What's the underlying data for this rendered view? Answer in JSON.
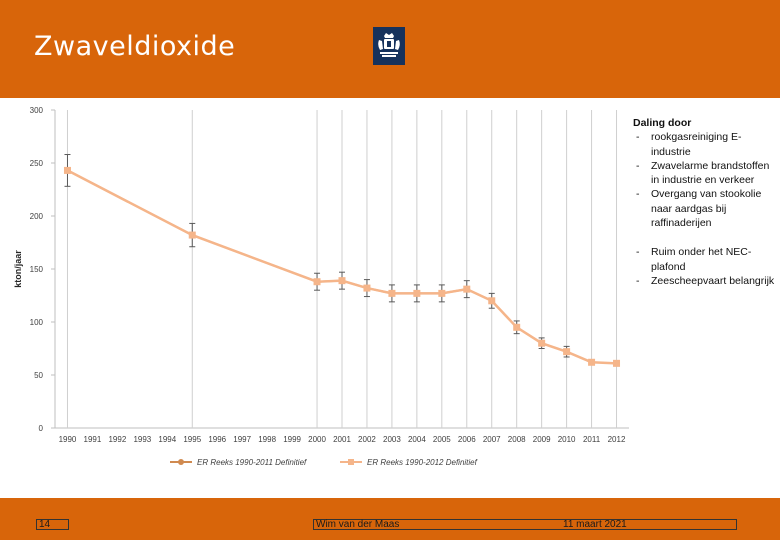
{
  "header": {
    "title": "Zwaveldioxide"
  },
  "notes": {
    "heading": "Daling door",
    "group1": [
      "rookgasreiniging E-industrie",
      "Zwavelarme brandstoffen in industrie en verkeer",
      "Overgang van stookolie naar aardgas bij raffinaderijen"
    ],
    "group2": [
      "Ruim onder het NEC-plafond",
      "Zeescheepvaart belangrijk"
    ]
  },
  "footer": {
    "page": "14",
    "author": "Wim van der Maas",
    "date": "11 maart 2021"
  },
  "colors": {
    "brand": "#d8650a",
    "series1": "#d08a50",
    "series2": "#f5b58a",
    "logo": "#16325c"
  },
  "icons": {
    "logo": "rijksoverheid-crest-icon"
  },
  "chart_data": {
    "type": "line",
    "ylabel": "kton/jaar",
    "ylim": [
      0,
      300
    ],
    "yticks": [
      "300",
      "250",
      "200",
      "150",
      "100",
      "50",
      "0"
    ],
    "categories": [
      "1990",
      "1991",
      "1992",
      "1993",
      "1994",
      "1995",
      "1996",
      "1997",
      "1998",
      "1999",
      "2000",
      "2001",
      "2002",
      "2003",
      "2004",
      "2005",
      "2006",
      "2007",
      "2008",
      "2009",
      "2010",
      "2011",
      "2012"
    ],
    "series": [
      {
        "name": "ER Reeks 1990-2011 Definitief",
        "x": [
          "1990",
          "1995",
          "2000",
          "2001",
          "2002",
          "2003",
          "2004",
          "2005",
          "2006",
          "2007",
          "2008",
          "2009",
          "2010",
          "2011"
        ],
        "values": [
          243,
          182,
          138,
          139,
          132,
          127,
          127,
          127,
          131,
          120,
          95,
          80,
          72,
          62
        ]
      },
      {
        "name": "ER Reeks 1990-2012 Definitief",
        "x": [
          "1990",
          "1995",
          "2000",
          "2001",
          "2002",
          "2003",
          "2004",
          "2005",
          "2006",
          "2007",
          "2008",
          "2009",
          "2010",
          "2011",
          "2012"
        ],
        "values": [
          243,
          182,
          138,
          139,
          132,
          127,
          127,
          127,
          131,
          120,
          95,
          80,
          72,
          62,
          61
        ],
        "error": [
          15,
          11,
          8,
          8,
          8,
          8,
          8,
          8,
          8,
          7,
          6,
          5,
          5,
          0,
          0
        ]
      }
    ],
    "vlines": [
      "1990",
      "1995",
      "2000",
      "2001",
      "2002",
      "2003",
      "2004",
      "2005",
      "2006",
      "2007",
      "2008",
      "2009",
      "2010",
      "2011",
      "2012"
    ]
  }
}
